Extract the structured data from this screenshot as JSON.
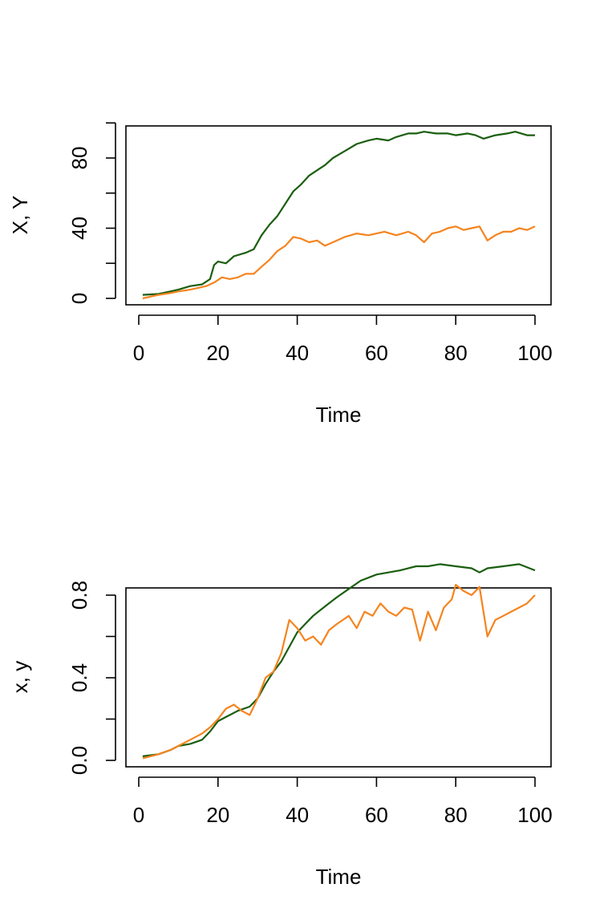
{
  "colors": {
    "series_X": "#1a5e0e",
    "series_Y": "#f5841f",
    "axis": "#000000",
    "background": "#ffffff"
  },
  "chart_data": [
    {
      "type": "line",
      "xlabel": "Time",
      "ylabel": "X, Y",
      "xlim": [
        1,
        100
      ],
      "ylim": [
        0,
        100
      ],
      "x_ticks": [
        0,
        20,
        40,
        60,
        80,
        100
      ],
      "x_tick_labels": [
        "0",
        "20",
        "40",
        "60",
        "80",
        "100"
      ],
      "y_ticks": [
        0,
        20,
        40,
        60,
        80,
        100
      ],
      "y_tick_labels": [
        "0",
        "",
        "40",
        "",
        "80",
        ""
      ],
      "grid": false,
      "legend": null,
      "series": [
        {
          "key": "X",
          "color": "#1a5e0e",
          "points": [
            [
              1,
              2
            ],
            [
              5,
              2.5
            ],
            [
              8,
              4
            ],
            [
              10,
              5
            ],
            [
              13,
              7
            ],
            [
              16,
              8
            ],
            [
              18,
              11
            ],
            [
              19,
              19
            ],
            [
              20,
              21
            ],
            [
              22,
              20
            ],
            [
              24,
              24
            ],
            [
              27,
              26
            ],
            [
              29,
              28
            ],
            [
              31,
              36
            ],
            [
              33,
              42
            ],
            [
              35,
              47
            ],
            [
              37,
              54
            ],
            [
              39,
              61
            ],
            [
              41,
              65
            ],
            [
              43,
              70
            ],
            [
              45,
              73
            ],
            [
              47,
              76
            ],
            [
              49,
              80
            ],
            [
              52,
              84
            ],
            [
              55,
              88
            ],
            [
              58,
              90
            ],
            [
              60,
              91
            ],
            [
              63,
              90
            ],
            [
              65,
              92
            ],
            [
              68,
              94
            ],
            [
              70,
              94
            ],
            [
              72,
              95
            ],
            [
              75,
              94
            ],
            [
              78,
              94
            ],
            [
              80,
              93
            ],
            [
              83,
              94
            ],
            [
              85,
              93
            ],
            [
              87,
              91
            ],
            [
              90,
              93
            ],
            [
              93,
              94
            ],
            [
              95,
              95
            ],
            [
              98,
              93
            ],
            [
              100,
              93
            ]
          ]
        },
        {
          "key": "Y",
          "color": "#f5841f",
          "points": [
            [
              1,
              0
            ],
            [
              5,
              2
            ],
            [
              8,
              3
            ],
            [
              10,
              4
            ],
            [
              13,
              5
            ],
            [
              15,
              6
            ],
            [
              17,
              7
            ],
            [
              19,
              9
            ],
            [
              21,
              12
            ],
            [
              23,
              11
            ],
            [
              25,
              12
            ],
            [
              27,
              14
            ],
            [
              29,
              14
            ],
            [
              31,
              18
            ],
            [
              33,
              22
            ],
            [
              35,
              27
            ],
            [
              37,
              30
            ],
            [
              39,
              35
            ],
            [
              41,
              34
            ],
            [
              43,
              32
            ],
            [
              45,
              33
            ],
            [
              47,
              30
            ],
            [
              49,
              32
            ],
            [
              52,
              35
            ],
            [
              55,
              37
            ],
            [
              58,
              36
            ],
            [
              60,
              37
            ],
            [
              62,
              38
            ],
            [
              65,
              36
            ],
            [
              68,
              38
            ],
            [
              70,
              36
            ],
            [
              72,
              32
            ],
            [
              74,
              37
            ],
            [
              76,
              38
            ],
            [
              78,
              40
            ],
            [
              80,
              41
            ],
            [
              82,
              39
            ],
            [
              84,
              40
            ],
            [
              86,
              41
            ],
            [
              88,
              33
            ],
            [
              90,
              36
            ],
            [
              92,
              38
            ],
            [
              94,
              38
            ],
            [
              96,
              40
            ],
            [
              98,
              39
            ],
            [
              100,
              41
            ]
          ]
        }
      ]
    },
    {
      "type": "line",
      "xlabel": "Time",
      "ylabel": "x, y",
      "xlim": [
        1,
        100
      ],
      "ylim": [
        0,
        0.95
      ],
      "x_ticks": [
        0,
        20,
        40,
        60,
        80,
        100
      ],
      "x_tick_labels": [
        "0",
        "20",
        "40",
        "60",
        "80",
        "100"
      ],
      "y_ticks": [
        0,
        0.2,
        0.4,
        0.6,
        0.8,
        1.0
      ],
      "y_tick_labels": [
        "0.0",
        "",
        "0.4",
        "",
        "0.8",
        ""
      ],
      "grid": false,
      "legend": null,
      "series": [
        {
          "key": "x",
          "color": "#1a5e0e",
          "points": [
            [
              1,
              0.02
            ],
            [
              5,
              0.03
            ],
            [
              8,
              0.05
            ],
            [
              10,
              0.07
            ],
            [
              13,
              0.08
            ],
            [
              16,
              0.1
            ],
            [
              18,
              0.14
            ],
            [
              20,
              0.19
            ],
            [
              22,
              0.21
            ],
            [
              25,
              0.24
            ],
            [
              28,
              0.26
            ],
            [
              30,
              0.3
            ],
            [
              32,
              0.37
            ],
            [
              34,
              0.43
            ],
            [
              36,
              0.48
            ],
            [
              38,
              0.55
            ],
            [
              40,
              0.62
            ],
            [
              42,
              0.66
            ],
            [
              44,
              0.7
            ],
            [
              46,
              0.73
            ],
            [
              48,
              0.76
            ],
            [
              50,
              0.79
            ],
            [
              53,
              0.83
            ],
            [
              56,
              0.87
            ],
            [
              60,
              0.9
            ],
            [
              63,
              0.91
            ],
            [
              66,
              0.92
            ],
            [
              70,
              0.94
            ],
            [
              73,
              0.94
            ],
            [
              76,
              0.95
            ],
            [
              80,
              0.94
            ],
            [
              84,
              0.93
            ],
            [
              86,
              0.91
            ],
            [
              88,
              0.93
            ],
            [
              92,
              0.94
            ],
            [
              96,
              0.95
            ],
            [
              100,
              0.92
            ]
          ]
        },
        {
          "key": "y",
          "color": "#f5841f",
          "points": [
            [
              1,
              0.01
            ],
            [
              5,
              0.03
            ],
            [
              8,
              0.05
            ],
            [
              10,
              0.07
            ],
            [
              12,
              0.09
            ],
            [
              14,
              0.11
            ],
            [
              16,
              0.13
            ],
            [
              18,
              0.16
            ],
            [
              20,
              0.2
            ],
            [
              22,
              0.25
            ],
            [
              24,
              0.27
            ],
            [
              26,
              0.24
            ],
            [
              28,
              0.22
            ],
            [
              30,
              0.3
            ],
            [
              32,
              0.4
            ],
            [
              34,
              0.43
            ],
            [
              36,
              0.52
            ],
            [
              38,
              0.68
            ],
            [
              40,
              0.64
            ],
            [
              42,
              0.58
            ],
            [
              44,
              0.6
            ],
            [
              46,
              0.56
            ],
            [
              48,
              0.63
            ],
            [
              50,
              0.66
            ],
            [
              53,
              0.7
            ],
            [
              55,
              0.64
            ],
            [
              57,
              0.72
            ],
            [
              59,
              0.7
            ],
            [
              61,
              0.76
            ],
            [
              63,
              0.72
            ],
            [
              65,
              0.7
            ],
            [
              67,
              0.74
            ],
            [
              69,
              0.73
            ],
            [
              71,
              0.58
            ],
            [
              73,
              0.72
            ],
            [
              75,
              0.63
            ],
            [
              77,
              0.74
            ],
            [
              79,
              0.78
            ],
            [
              80,
              0.85
            ],
            [
              82,
              0.82
            ],
            [
              84,
              0.8
            ],
            [
              86,
              0.84
            ],
            [
              88,
              0.6
            ],
            [
              90,
              0.68
            ],
            [
              92,
              0.7
            ],
            [
              94,
              0.72
            ],
            [
              96,
              0.74
            ],
            [
              98,
              0.76
            ],
            [
              100,
              0.8
            ]
          ]
        }
      ]
    }
  ]
}
